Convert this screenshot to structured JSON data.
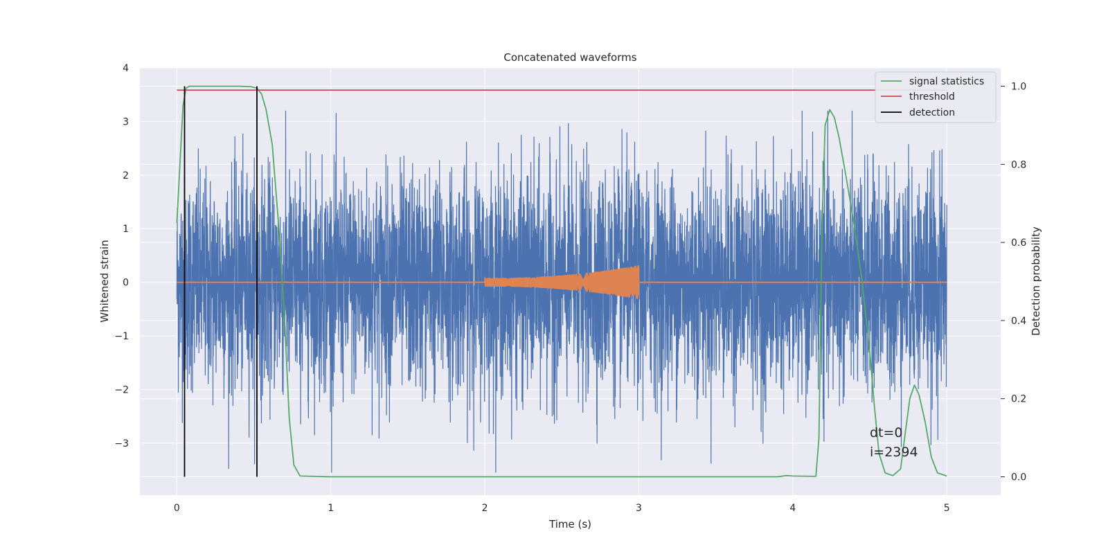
{
  "chart_data": {
    "type": "line",
    "title": "Concatenated waveforms",
    "xlabel": "Time (s)",
    "ylabel": "Whitened strain",
    "y2label": "Detection probability",
    "xlim": [
      -0.24,
      5.35
    ],
    "ylim": [
      -3.97,
      4.0
    ],
    "y2lim": [
      -0.047,
      1.047
    ],
    "xticks": [
      0,
      1,
      2,
      3,
      4,
      5
    ],
    "xtick_labels": [
      "0",
      "1",
      "2",
      "3",
      "4",
      "5"
    ],
    "yticks": [
      4,
      3,
      2,
      1,
      0,
      -1,
      -2,
      -3
    ],
    "ytick_labels": [
      "4",
      "3",
      "2",
      "1",
      "0",
      "−1",
      "−2",
      "−3"
    ],
    "y2ticks": [
      1.0,
      0.8,
      0.6,
      0.4,
      0.2,
      0.0
    ],
    "y2tick_labels": [
      "1.0",
      "0.8",
      "0.6",
      "0.4",
      "0.2",
      "0.0"
    ],
    "grid": true,
    "legend_position": "top-right",
    "background": "#eaeaf2",
    "strain_noise": {
      "name": "",
      "color": "#4c72b0",
      "x_range": [
        0,
        5
      ],
      "y_range": [
        -3.55,
        3.2
      ],
      "description_note": ""
    },
    "injected_signal": {
      "name": "",
      "color": "#dd8452",
      "x_range": [
        2.0,
        3.0
      ],
      "envelope_start": 0.08,
      "envelope_end": 0.32
    },
    "series": [
      {
        "name": "signal statistics",
        "color": "#55a868",
        "axis": "right",
        "x": [
          0,
          0.02,
          0.04,
          0.06,
          0.08,
          0.1,
          0.2,
          0.3,
          0.4,
          0.48,
          0.52,
          0.55,
          0.58,
          0.62,
          0.66,
          0.7,
          0.73,
          0.76,
          0.8,
          1.0,
          2.0,
          3.0,
          3.9,
          3.96,
          4.0,
          4.15,
          4.17,
          4.19,
          4.21,
          4.24,
          4.27,
          4.3,
          4.35,
          4.4,
          4.45,
          4.5,
          4.53,
          4.56,
          4.6,
          4.65,
          4.7,
          4.73,
          4.76,
          4.79,
          4.82,
          4.86,
          4.9,
          4.94,
          5.0
        ],
        "y": [
          0.65,
          0.8,
          0.95,
          0.995,
          1.0,
          1.0,
          1.0,
          1.0,
          1.0,
          0.999,
          0.995,
          0.98,
          0.94,
          0.85,
          0.65,
          0.4,
          0.15,
          0.03,
          0.002,
          0.0,
          0.0,
          0.0,
          0.0,
          0.003,
          0.002,
          0.001,
          0.1,
          0.65,
          0.9,
          0.94,
          0.92,
          0.87,
          0.76,
          0.64,
          0.5,
          0.32,
          0.18,
          0.06,
          0.01,
          0.003,
          0.02,
          0.11,
          0.2,
          0.235,
          0.21,
          0.14,
          0.05,
          0.01,
          0.002
        ]
      },
      {
        "name": "threshold",
        "color": "#c44e52",
        "axis": "right",
        "x": [
          0,
          5
        ],
        "y": [
          0.99,
          0.99
        ]
      },
      {
        "name": "detection",
        "color": "#000000",
        "axis": "right",
        "vlines": [
          0.05,
          0.52
        ],
        "ymin": 0.0,
        "ymax": 1.0
      }
    ],
    "annotations": [
      "dt=0",
      "i=2394"
    ]
  }
}
